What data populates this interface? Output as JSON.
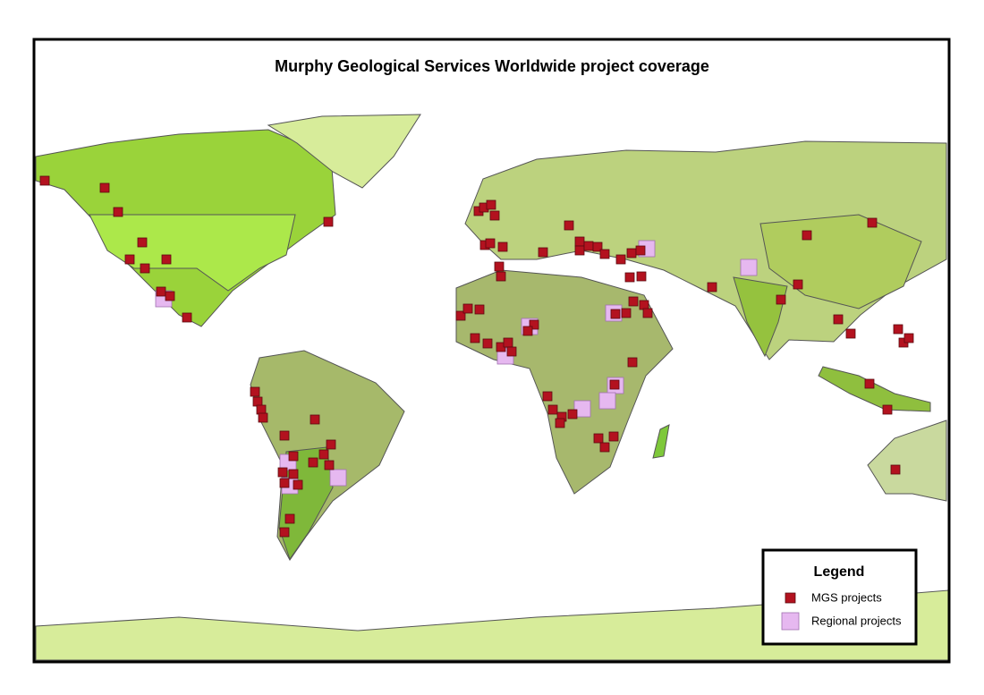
{
  "header": {
    "title": "Murphy Geological Services Worldwide project coverage"
  },
  "legend": {
    "title": "Legend",
    "items": [
      {
        "label": "MGS projects"
      },
      {
        "label": "Regional projects"
      }
    ]
  }
}
